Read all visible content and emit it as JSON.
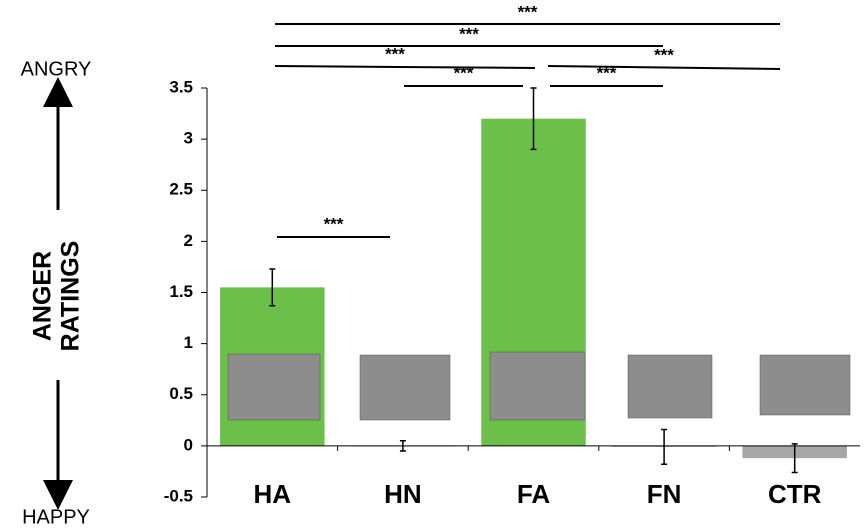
{
  "chart_data": {
    "type": "bar",
    "y_label_lines": [
      "ANGER",
      "RATINGS"
    ],
    "top_label": "ANGRY",
    "bottom_label": "HAPPY",
    "categories": [
      "HA",
      "HN",
      "FA",
      "FN",
      "CTR"
    ],
    "values": [
      1.55,
      0.0,
      3.2,
      -0.01,
      -0.12
    ],
    "errors": [
      0.18,
      0.05,
      0.3,
      0.17,
      0.14
    ],
    "colors": [
      "#6cc04a",
      "#6cc04a",
      "#6cc04a",
      "#a6a6a6",
      "#a6a6a6"
    ],
    "ylim": [
      -0.5,
      3.5
    ],
    "yticks": [
      -0.5,
      0,
      0.5,
      1,
      1.5,
      2,
      2.5,
      3,
      3.5
    ],
    "significance": [
      {
        "pair": [
          0,
          1
        ],
        "label": "***"
      },
      {
        "pair": [
          1,
          2
        ],
        "label": "***"
      },
      {
        "pair": [
          2,
          3
        ],
        "label": "***"
      },
      {
        "pair": [
          0,
          2
        ],
        "label": "***"
      },
      {
        "pair": [
          2,
          4
        ],
        "label": "***"
      },
      {
        "pair": [
          0,
          3
        ],
        "label": "***"
      },
      {
        "pair": [
          0,
          4
        ],
        "label": "***"
      }
    ]
  }
}
